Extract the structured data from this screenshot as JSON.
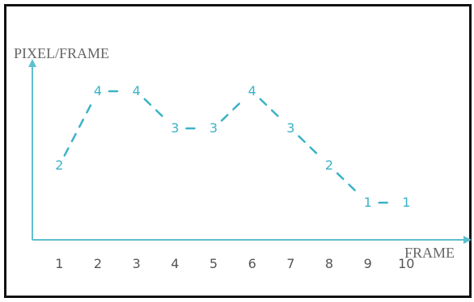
{
  "chart_data": {
    "type": "line",
    "title": "",
    "xlabel": "FRAME",
    "ylabel": "PIXEL/FRAME",
    "x": [
      1,
      2,
      3,
      4,
      5,
      6,
      7,
      8,
      9,
      10
    ],
    "series": [
      {
        "values": [
          2,
          4,
          4,
          3,
          3,
          4,
          3,
          2,
          1,
          1
        ]
      }
    ],
    "data_labels": [
      "2",
      "4",
      "4",
      "3",
      "3",
      "4",
      "3",
      "2",
      "1",
      "1"
    ],
    "xlim": [
      0.3,
      11
    ],
    "ylim": [
      0,
      6
    ],
    "grid": false,
    "line_style": "dashed",
    "colors": {
      "series": "#3bb3c6",
      "axis": "#5ebfd0",
      "frame": "#111111"
    }
  }
}
